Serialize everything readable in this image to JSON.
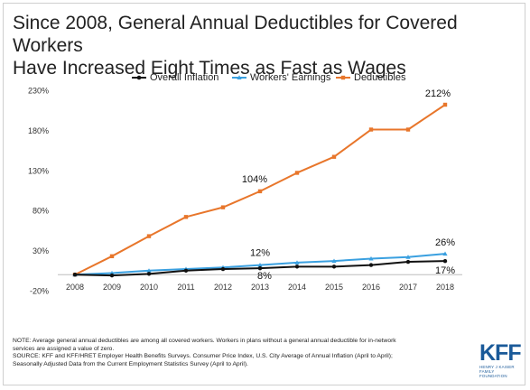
{
  "title_line1": "Since 2008, General Annual Deductibles for Covered Workers",
  "title_line2": "Have Increased Eight Times as Fast as Wages",
  "note_lines": [
    "NOTE: Average general annual deductibles are among all covered workers. Workers in plans without a general annual deductible for in-network",
    "services are assigned a value of zero.",
    "SOURCE: KFF and KFF/HRET Employer Health Benefits Surveys. Consumer Price Index, U.S. City Average of Annual Inflation (April to April);",
    "Seasonally Adjusted Data from the Current Employment Statistics Survey (April to April)."
  ],
  "logo": {
    "letters": "KFF",
    "sub1": "HENRY J KAISER",
    "sub2": "FAMILY FOUNDATION",
    "color": "#1a5a99"
  },
  "chart_data": {
    "type": "line",
    "categories": [
      "2008",
      "2009",
      "2010",
      "2011",
      "2012",
      "2013",
      "2014",
      "2015",
      "2016",
      "2017",
      "2018"
    ],
    "series": [
      {
        "name": "Overall Inflation",
        "color": "#111111",
        "marker": "circle",
        "values": [
          0,
          -1,
          1,
          5,
          7,
          8,
          10,
          10,
          12,
          16,
          17
        ]
      },
      {
        "name": "Workers' Earnings",
        "color": "#3aa0e0",
        "marker": "triangle",
        "values": [
          0,
          2,
          5,
          7,
          9,
          12,
          15,
          17,
          20,
          22,
          26
        ]
      },
      {
        "name": "Deductibles",
        "color": "#e8762b",
        "marker": "square",
        "values": [
          0,
          23,
          48,
          72,
          84,
          104,
          127,
          147,
          181,
          181,
          212
        ]
      }
    ],
    "ytick_labels": [
      "230%",
      "180%",
      "130%",
      "80%",
      "30%",
      "-20%"
    ],
    "yticks": [
      230,
      180,
      130,
      80,
      30,
      -20
    ],
    "ylim": [
      -20,
      230
    ],
    "grid": false,
    "legend_position": "top",
    "annotations": [
      {
        "series": 2,
        "index": 5,
        "text": "104%"
      },
      {
        "series": 2,
        "index": 10,
        "text": "212%"
      },
      {
        "series": 1,
        "index": 5,
        "text": "12%"
      },
      {
        "series": 1,
        "index": 10,
        "text": "26%"
      },
      {
        "series": 0,
        "index": 5,
        "text": "8%"
      },
      {
        "series": 0,
        "index": 10,
        "text": "17%"
      }
    ]
  }
}
